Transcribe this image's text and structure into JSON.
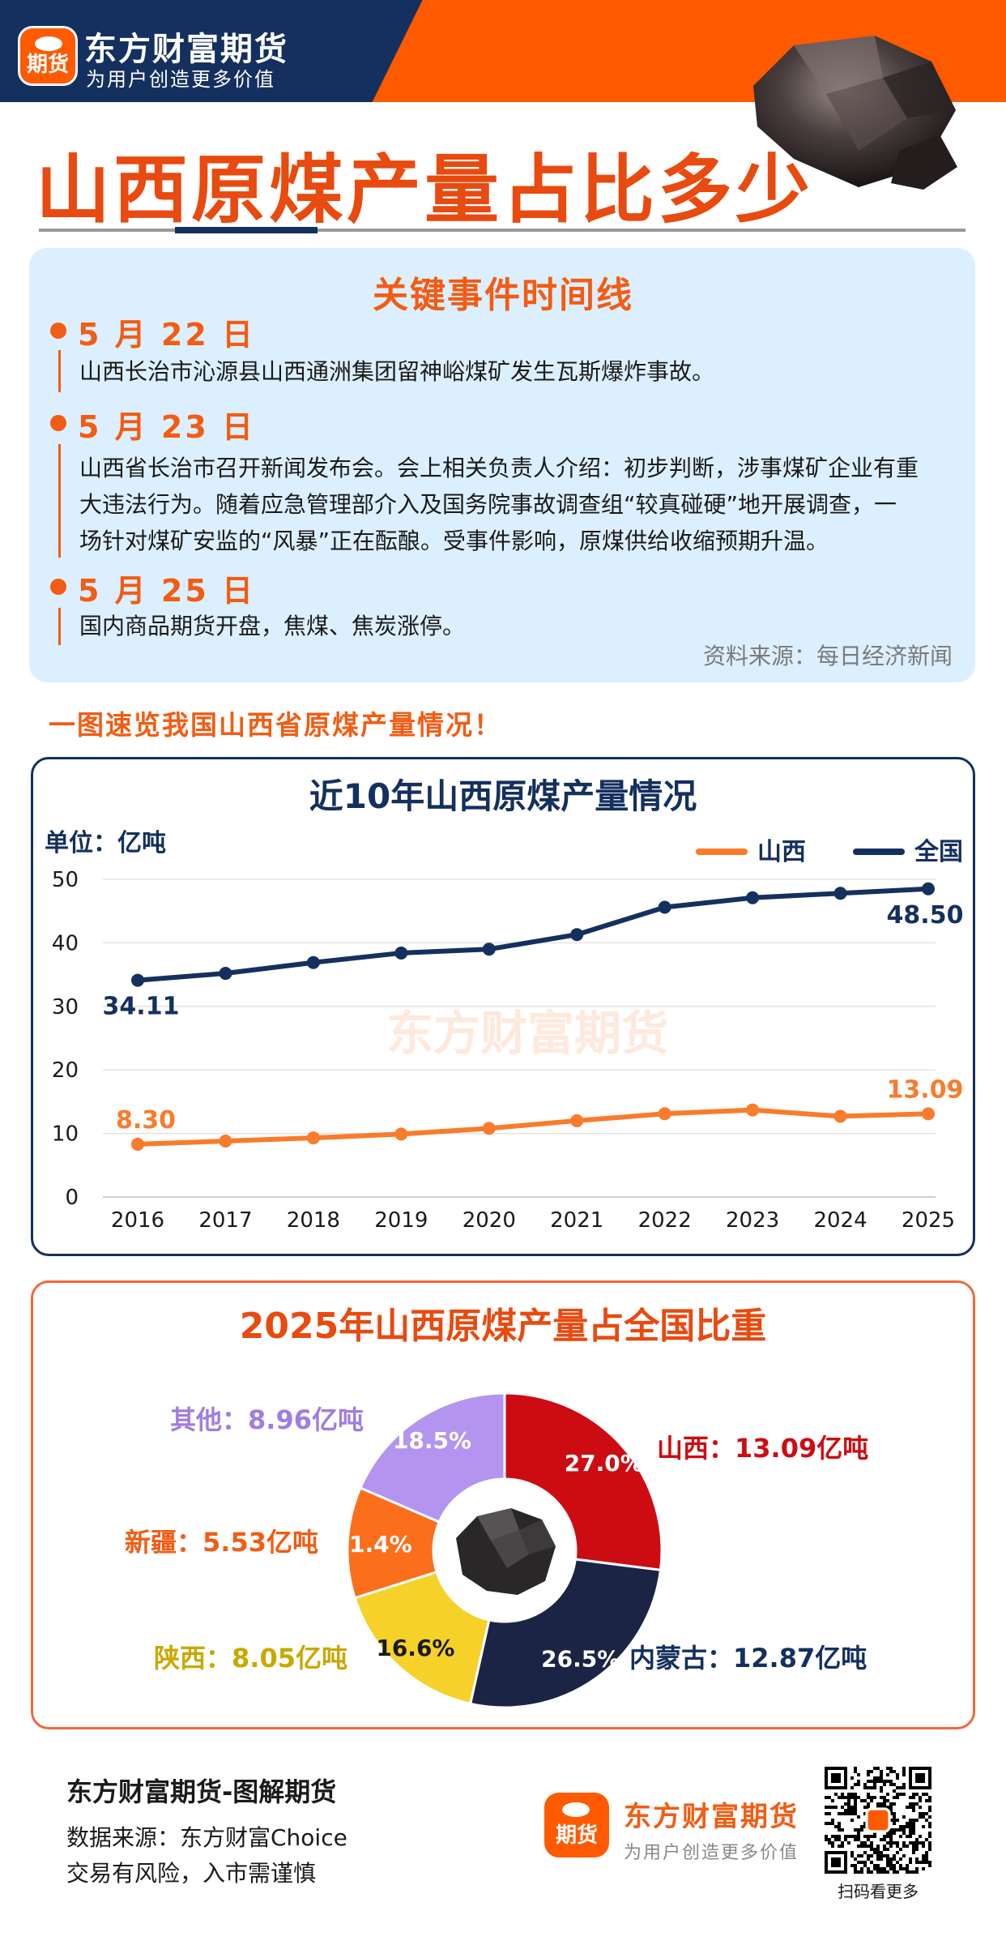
{
  "header": {
    "logo_text": "期货",
    "brand": "东方财富期货",
    "slogan": "为用户创造更多价值",
    "title": "山西原煤产量占比多少"
  },
  "timeline": {
    "title": "关键事件时间线",
    "events": [
      {
        "date": "5 月 22 日",
        "lines": [
          "山西长治市沁源县山西通洲集团留神峪煤矿发生瓦斯爆炸事故。"
        ]
      },
      {
        "date": "5 月 23 日",
        "lines": [
          "山西省长治市召开新闻发布会。会上相关负责人介绍：初步判断，涉事煤矿企业有重",
          "大违法行为。随着应急管理部介入及国务院事故调查组“较真碰硬”地开展调查，一",
          "场针对煤矿安监的“风暴”正在酝酿。受事件影响，原煤供给收缩预期升温。"
        ]
      },
      {
        "date": "5 月 25 日",
        "lines": [
          "国内商品期货开盘，焦煤、焦炭涨停。"
        ]
      }
    ],
    "source": "资料来源：每日经济新闻"
  },
  "section_heading": "一图速览我国山西省原煤产量情况！",
  "chart_data": [
    {
      "type": "line",
      "title": "近10年山西原煤产量情况",
      "unit_label": "单位：亿吨",
      "watermark": "东方财富期货",
      "x": [
        "2016",
        "2017",
        "2018",
        "2019",
        "2020",
        "2021",
        "2022",
        "2023",
        "2024",
        "2025"
      ],
      "ylim": [
        0,
        50
      ],
      "yticks": [
        "0",
        "10",
        "20",
        "30",
        "40",
        "50"
      ],
      "grid": true,
      "legend_position": "top-right",
      "series": [
        {
          "name": "山西",
          "color": "#f97b2c",
          "values": [
            8.3,
            8.8,
            9.3,
            9.9,
            10.8,
            12.0,
            13.1,
            13.7,
            12.7,
            13.09
          ],
          "first_label": "8.30",
          "last_label": "13.09"
        },
        {
          "name": "全国",
          "color": "#14305e",
          "values": [
            34.11,
            35.2,
            36.9,
            38.4,
            39.0,
            41.3,
            45.6,
            47.1,
            47.8,
            48.5
          ],
          "first_label": "34.11",
          "last_label": "48.50"
        }
      ]
    },
    {
      "type": "pie",
      "title": "2025年山西原煤产量占全国比重",
      "slices": [
        {
          "name": "山西",
          "label": "山西：13.09亿吨",
          "pct": 27.0,
          "pct_label": "27.0%",
          "color": "#cc0c12",
          "label_color": "#cc0c12"
        },
        {
          "name": "内蒙古",
          "label": "内蒙古：12.87亿吨",
          "pct": 26.5,
          "pct_label": "26.5%",
          "color": "#1b2444",
          "label_color": "#14305e"
        },
        {
          "name": "陕西",
          "label": "陕西：8.05亿吨",
          "pct": 16.6,
          "pct_label": "16.6%",
          "color": "#f6d12a",
          "label_color": "#c9a800"
        },
        {
          "name": "新疆",
          "label": "新疆：5.53亿吨",
          "pct": 11.4,
          "pct_label": "11.4%",
          "color": "#fb6e1c",
          "label_color": "#f25c13"
        },
        {
          "name": "其他",
          "label": "其他：8.96亿吨",
          "pct": 18.5,
          "pct_label": "18.5%",
          "color": "#b394ef",
          "label_color": "#a07de0"
        }
      ]
    }
  ],
  "footer": {
    "title": "东方财富期货-图解期货",
    "source": "数据来源：东方财富Choice",
    "risk": "交易有风险，入市需谨慎",
    "logo_text": "期货",
    "brand": "东方财富期货",
    "slogan": "为用户创造更多价值",
    "qr_caption": "扫码看更多"
  },
  "colors": {
    "accent": "#f25c13",
    "navy": "#14305e",
    "timeline_bg": "#dcefff"
  }
}
